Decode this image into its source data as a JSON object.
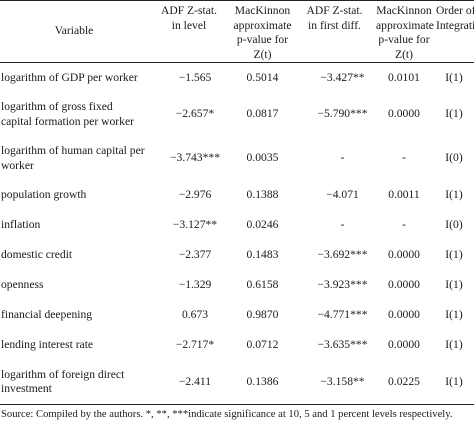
{
  "table": {
    "headers": [
      "Variable",
      "ADF Z-stat.\nin level",
      "MacKinnon\napproximate\np-value for\nZ(t)",
      "ADF Z-stat.\nin first diff.",
      "MacKinnon\napproximate\np-value for\nZ(t)",
      "Order of\nIntegration"
    ],
    "rows": [
      {
        "variable": "logarithm of GDP per worker",
        "adf_level": "−1.565",
        "p_level": "0.5014",
        "adf_diff": "−3.427**",
        "p_diff": "0.0101",
        "order": "I(1)"
      },
      {
        "variable": "logarithm of gross fixed capital formation per worker",
        "adf_level": "−2.657*",
        "p_level": "0.0817",
        "adf_diff": "−5.790***",
        "p_diff": "0.0000",
        "order": "I(1)"
      },
      {
        "variable": "logarithm of human capital per worker",
        "adf_level": "−3.743***",
        "p_level": "0.0035",
        "adf_diff": "-",
        "p_diff": "-",
        "order": "I(0)"
      },
      {
        "variable": "population growth",
        "adf_level": "−2.976",
        "p_level": "0.1388",
        "adf_diff": "−4.071",
        "p_diff": "0.0011",
        "order": "I(1)"
      },
      {
        "variable": "inflation",
        "adf_level": "−3.127**",
        "p_level": "0.0246",
        "adf_diff": "-",
        "p_diff": "-",
        "order": "I(0)"
      },
      {
        "variable": "domestic credit",
        "adf_level": "−2.377",
        "p_level": "0.1483",
        "adf_diff": "−3.692***",
        "p_diff": "0.0000",
        "order": "I(1)"
      },
      {
        "variable": "openness",
        "adf_level": "−1.329",
        "p_level": "0.6158",
        "adf_diff": "−3.923***",
        "p_diff": "0.0000",
        "order": "I(1)"
      },
      {
        "variable": "financial deepening",
        "adf_level": "0.673",
        "p_level": "0.9870",
        "adf_diff": "−4.771***",
        "p_diff": "0.0000",
        "order": "I(1)"
      },
      {
        "variable": "lending interest rate",
        "adf_level": "−2.717*",
        "p_level": "0.0712",
        "adf_diff": "−3.635***",
        "p_diff": "0.0000",
        "order": "I(1)"
      },
      {
        "variable": "logarithm of foreign direct investment",
        "adf_level": "−2.411",
        "p_level": "0.1386",
        "adf_diff": "−3.158**",
        "p_diff": "0.0225",
        "order": "I(1)"
      }
    ],
    "source": "Source: Compiled by the authors. *, **, ***indicate significance at 10, 5 and 1 percent levels respectively."
  }
}
